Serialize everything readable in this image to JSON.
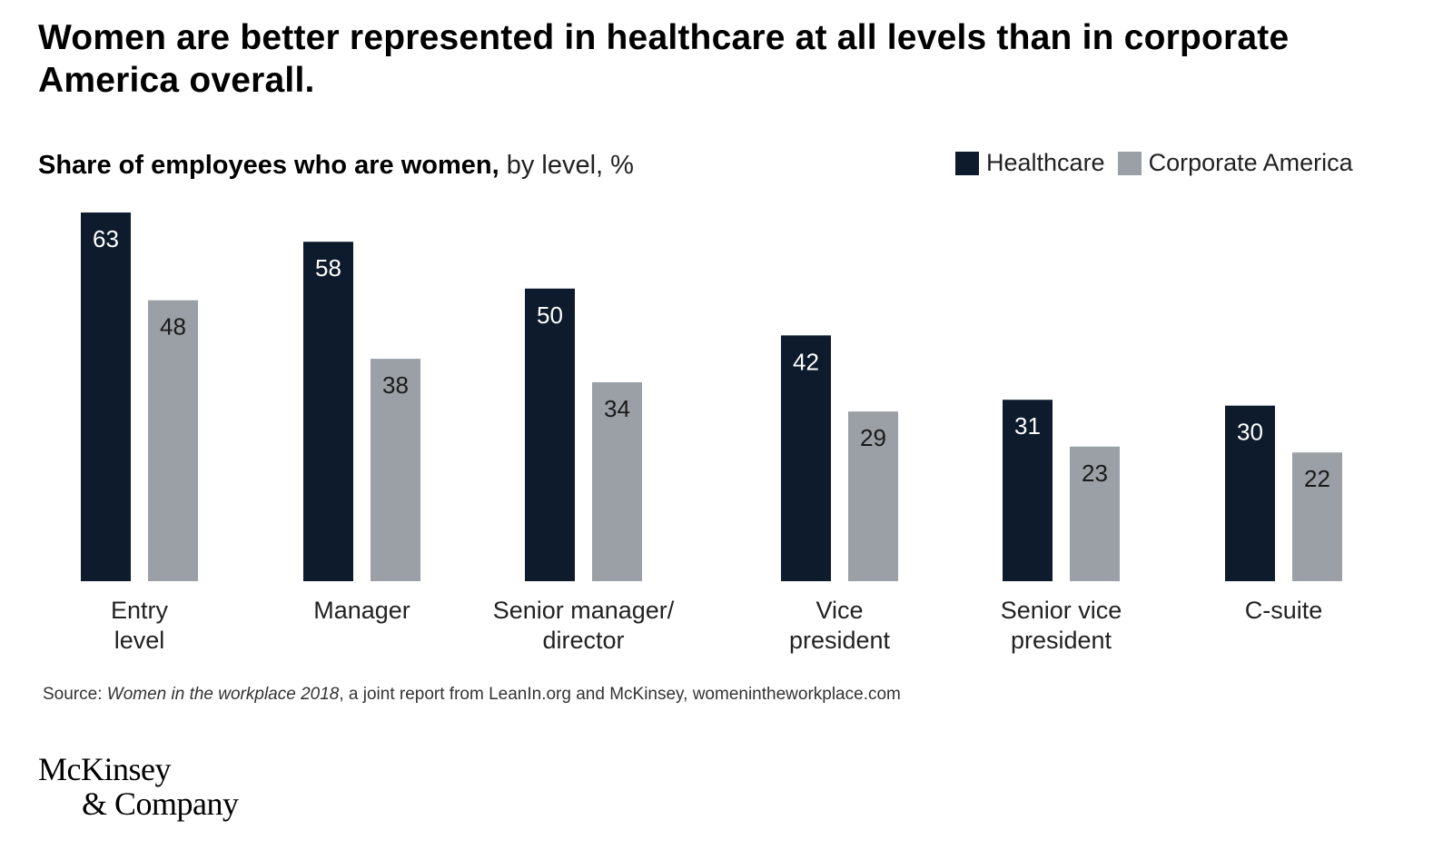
{
  "title": "Women are better represented in healthcare at all levels than in corporate America overall.",
  "subtitle_bold": "Share of employees who are women,",
  "subtitle_light": " by level, %",
  "legend": [
    {
      "label": "Healthcare",
      "color": "#0d1b2d"
    },
    {
      "label": "Corporate America",
      "color": "#9aa0a6"
    }
  ],
  "source": {
    "prefix": "Source: ",
    "italic": "Women in the workplace 2018",
    "rest": ", a joint report from LeanIn.org and McKinsey, womenintheworkplace.com"
  },
  "logo": {
    "line1": "McKinsey",
    "line2": "& Company"
  },
  "chart_data": {
    "type": "bar",
    "categories": [
      [
        "Entry",
        "level"
      ],
      [
        "Manager"
      ],
      [
        "Senior manager/",
        "director"
      ],
      [
        "Vice",
        "president"
      ],
      [
        "Senior vice",
        "president"
      ],
      [
        "C-suite"
      ]
    ],
    "series": [
      {
        "name": "Healthcare",
        "color": "#0d1b2d",
        "label_color": "#ffffff",
        "values": [
          63,
          58,
          50,
          42,
          31,
          30
        ]
      },
      {
        "name": "Corporate America",
        "color": "#9aa0a6",
        "label_color": "#1a1a1a",
        "values": [
          48,
          38,
          34,
          29,
          23,
          22
        ]
      }
    ],
    "ylim": [
      0,
      63
    ],
    "grid": false
  }
}
